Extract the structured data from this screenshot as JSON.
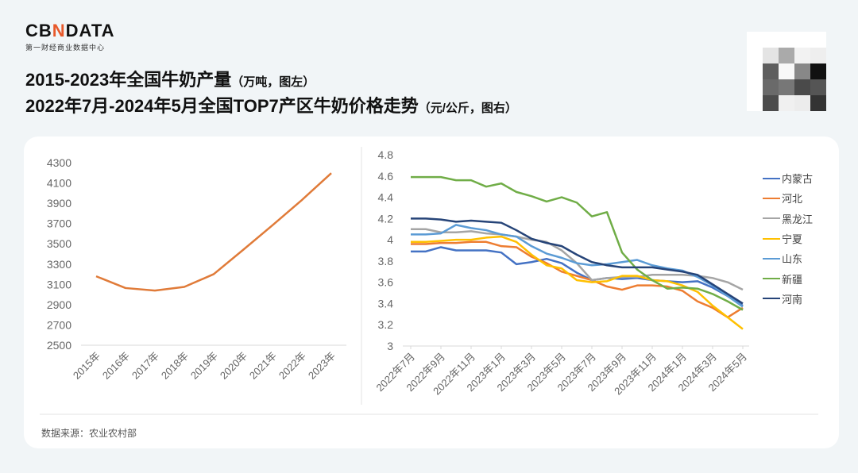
{
  "logo": {
    "main_a": "CB",
    "main_x": "N",
    "main_b": "DATA",
    "sub": "第一财经商业数据中心"
  },
  "title": {
    "line1": "2015-2023年全国牛奶产量",
    "line1_note": "（万吨，图左）",
    "line2": "2022年7月-2024年5月全国TOP7产区牛奶价格走势",
    "line2_note": "（元/公斤，图右）"
  },
  "source": "数据来源：农业农村部",
  "chart_data": [
    {
      "type": "line",
      "title": "2015-2023年全国牛奶产量",
      "ylabel": "万吨",
      "ylim": [
        2500,
        4300
      ],
      "yticks": [
        2500,
        2700,
        2900,
        3100,
        3300,
        3500,
        3700,
        3900,
        4100,
        4300
      ],
      "categories": [
        "2015年",
        "2016年",
        "2017年",
        "2018年",
        "2019年",
        "2020年",
        "2021年",
        "2022年",
        "2023年"
      ],
      "series": [
        {
          "name": "牛奶产量",
          "color": "#e07b39",
          "values": [
            3180,
            3064,
            3039,
            3075,
            3201,
            3440,
            3683,
            3932,
            4197
          ]
        }
      ]
    },
    {
      "type": "line",
      "title": "2022年7月-2024年5月全国TOP7产区牛奶价格走势",
      "ylabel": "元/公斤",
      "ylim": [
        3,
        4.8
      ],
      "yticks": [
        "3",
        "3.2",
        "3.4",
        "3.6",
        "3.8",
        "4",
        "4.2",
        "4.4",
        "4.6",
        "4.8"
      ],
      "legend_position": "right",
      "categories": [
        "2022年7月",
        "2022年8月",
        "2022年9月",
        "2022年10月",
        "2022年11月",
        "2022年12月",
        "2023年1月",
        "2023年2月",
        "2023年3月",
        "2023年4月",
        "2023年5月",
        "2023年6月",
        "2023年7月",
        "2023年8月",
        "2023年9月",
        "2023年10月",
        "2023年11月",
        "2023年12月",
        "2024年1月",
        "2024年2月",
        "2024年3月",
        "2024年4月",
        "2024年5月"
      ],
      "tick_labels": [
        "2022年7月",
        "2022年9月",
        "2022年11月",
        "2023年1月",
        "2023年3月",
        "2023年5月",
        "2023年7月",
        "2023年9月",
        "2023年11月",
        "2024年1月",
        "2024年3月",
        "2024年5月"
      ],
      "series": [
        {
          "name": "内蒙古",
          "color": "#4472c4",
          "values": [
            3.89,
            3.89,
            3.93,
            3.9,
            3.9,
            3.9,
            3.88,
            3.77,
            3.79,
            3.82,
            3.78,
            3.69,
            3.62,
            3.64,
            3.63,
            3.64,
            3.62,
            3.61,
            3.6,
            3.61,
            3.55,
            3.47,
            3.38
          ]
        },
        {
          "name": "河北",
          "color": "#ed7d31",
          "values": [
            3.96,
            3.96,
            3.97,
            3.97,
            3.98,
            3.98,
            3.94,
            3.93,
            3.84,
            3.78,
            3.7,
            3.66,
            3.62,
            3.56,
            3.53,
            3.57,
            3.57,
            3.56,
            3.52,
            3.42,
            3.36,
            3.27,
            3.36
          ]
        },
        {
          "name": "黑龙江",
          "color": "#a5a5a5",
          "values": [
            4.1,
            4.1,
            4.07,
            4.07,
            4.08,
            4.06,
            4.05,
            4.03,
            4.0,
            3.98,
            3.9,
            3.78,
            3.62,
            3.64,
            3.65,
            3.65,
            3.67,
            3.67,
            3.67,
            3.66,
            3.64,
            3.6,
            3.53
          ]
        },
        {
          "name": "宁夏",
          "color": "#ffc000",
          "values": [
            3.98,
            3.98,
            3.99,
            4.0,
            4.0,
            4.02,
            4.03,
            3.98,
            3.86,
            3.76,
            3.73,
            3.62,
            3.6,
            3.61,
            3.66,
            3.66,
            3.62,
            3.61,
            3.57,
            3.51,
            3.38,
            3.27,
            3.16
          ]
        },
        {
          "name": "山东",
          "color": "#5b9bd5",
          "values": [
            4.05,
            4.05,
            4.06,
            4.14,
            4.11,
            4.09,
            4.05,
            4.03,
            3.94,
            3.87,
            3.83,
            3.78,
            3.76,
            3.77,
            3.79,
            3.81,
            3.76,
            3.73,
            3.71,
            3.65,
            3.57,
            3.47,
            3.37
          ]
        },
        {
          "name": "新疆",
          "color": "#70ad47",
          "values": [
            4.59,
            4.59,
            4.59,
            4.56,
            4.56,
            4.5,
            4.53,
            4.45,
            4.41,
            4.36,
            4.4,
            4.35,
            4.22,
            4.26,
            3.88,
            3.72,
            3.62,
            3.54,
            3.55,
            3.54,
            3.49,
            3.42,
            3.34
          ]
        },
        {
          "name": "河南",
          "color": "#264478",
          "values": [
            4.2,
            4.2,
            4.19,
            4.17,
            4.18,
            4.17,
            4.16,
            4.09,
            4.01,
            3.97,
            3.94,
            3.86,
            3.79,
            3.76,
            3.74,
            3.74,
            3.74,
            3.72,
            3.7,
            3.67,
            3.58,
            3.49,
            3.4
          ]
        }
      ]
    }
  ]
}
